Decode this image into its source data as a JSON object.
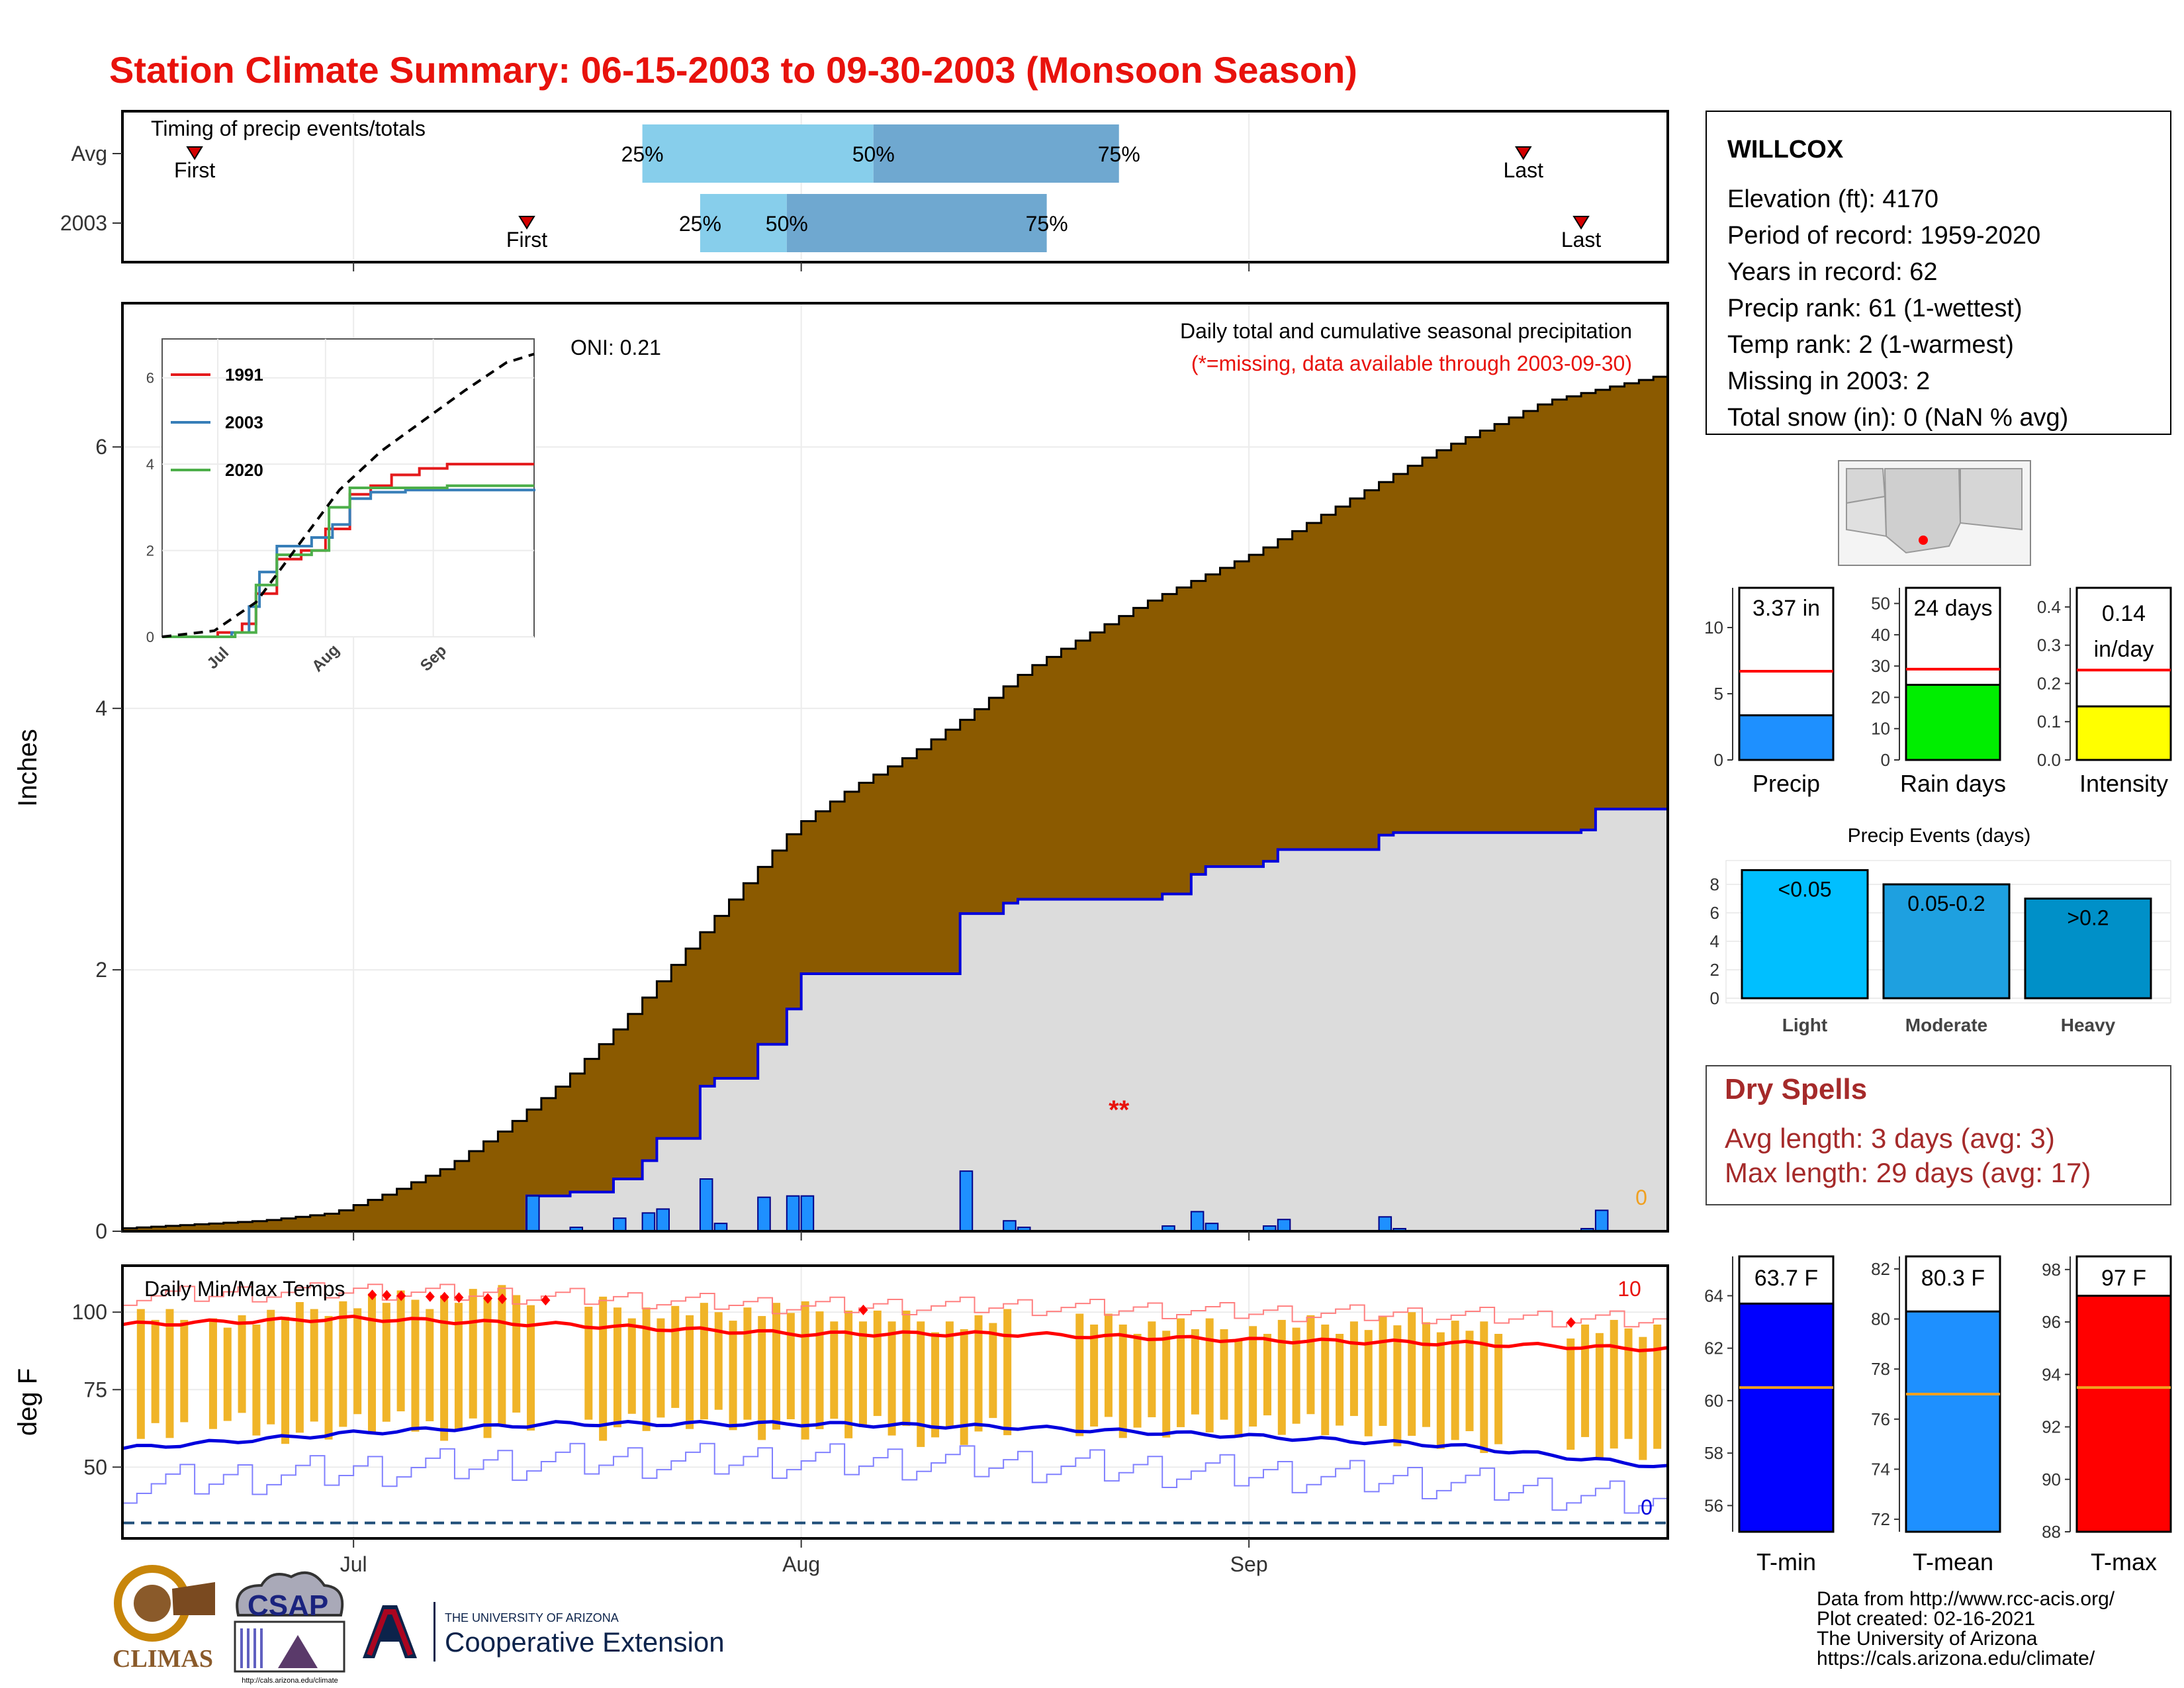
{
  "page": {
    "title": "Station Climate Summary: 06-15-2003 to 09-30-2003 (Monsoon Season)",
    "title_color": "#e8120c"
  },
  "timing_panel": {
    "label": "Timing of precip events/totals",
    "rows": [
      {
        "name": "Avg",
        "first_label": "First",
        "last_label": "Last",
        "first": "2003-06-20",
        "last": "2003-09-20",
        "p25": "2003-07-21",
        "p50": "2003-08-06",
        "p75": "2003-08-23",
        "p25_label": "25%",
        "p50_label": "50%",
        "p75_label": "75%"
      },
      {
        "name": "2003",
        "first_label": "First",
        "last_label": "Last",
        "first": "2003-07-13",
        "last": "2003-09-24",
        "p25": "2003-07-25",
        "p50": "2003-07-31",
        "p75": "2003-08-18",
        "p25_label": "25%",
        "p50_label": "50%",
        "p75_label": "75%"
      }
    ],
    "colors": {
      "light": "#87ceeb",
      "dark": "#6fa8d0",
      "marker": "#d40000"
    }
  },
  "precip_panel": {
    "ylabel": "Inches",
    "title": "Daily total and cumulative seasonal precipitation",
    "note": "(*=missing, data available through 2003-09-30)",
    "oni_label": "ONI: 0.21",
    "missing_marker": "**",
    "missing_date": "2003-08-23",
    "zero_label": "0",
    "ylim": [
      0,
      7.1
    ],
    "yticks": [
      0,
      2,
      4,
      6
    ],
    "colors": {
      "avg_fill": "#8b5a00",
      "obs_fill": "#dcdcdc",
      "obs_line": "#0000dd",
      "bar": "#1e90ff"
    }
  },
  "inset_chart": {
    "yticks": [
      0,
      2,
      4,
      6
    ],
    "xticks": [
      "Jul",
      "Aug",
      "Sep"
    ],
    "legend": [
      {
        "name": "1991",
        "color": "#e41a1c"
      },
      {
        "name": "2003",
        "color": "#377eb8"
      },
      {
        "name": "2020",
        "color": "#4daf4a"
      }
    ]
  },
  "temp_panel": {
    "ylabel": "deg F",
    "title": "Daily Min/Max Temps",
    "count_hi": "10",
    "count_lo": "0",
    "ylim": [
      27,
      115
    ],
    "yticks": [
      50,
      75,
      100
    ],
    "freeze_line": 32,
    "colors": {
      "bar": "#f0b428",
      "max_avg": "#ff0000",
      "min_avg": "#0000dd",
      "max_rec": "#ff8080",
      "min_rec": "#8080ff",
      "record": "#ff0000"
    }
  },
  "x_axis": {
    "start": "2003-06-15",
    "end": "2003-09-30",
    "ticks": [
      "Jul",
      "Aug",
      "Sep"
    ]
  },
  "station": {
    "name": "WILLCOX",
    "lines": [
      "Elevation (ft): 4170",
      "Period of record: 1959-2020",
      "Years in record: 62",
      "Precip rank: 61 (1-wettest)",
      "Temp rank: 2 (1-warmest)",
      "Missing in 2003: 2",
      "Total snow (in): 0 (NaN % avg)"
    ]
  },
  "summary_bars": [
    {
      "label": "Precip",
      "value": 3.37,
      "value_label": "3.37 in",
      "avg": 6.7,
      "ymax": 13,
      "yticks": [
        0,
        5,
        10
      ],
      "tick_decimals": 0,
      "color": "#1e90ff"
    },
    {
      "label": "Rain days",
      "value": 24,
      "value_label": "24 days",
      "avg": 29,
      "ymax": 55,
      "yticks": [
        0,
        10,
        20,
        30,
        40,
        50
      ],
      "tick_decimals": 0,
      "color": "#00ee00"
    },
    {
      "label": "Intensity",
      "value": 0.14,
      "value_label": "0.14 in/day",
      "avg": 0.235,
      "ymax": 0.45,
      "yticks": [
        0.0,
        0.1,
        0.2,
        0.3,
        0.4
      ],
      "tick_decimals": 1,
      "color": "#ffff00"
    }
  ],
  "precip_events": {
    "title": "Precip Events (days)",
    "categories": [
      "Light",
      "Moderate",
      "Heavy"
    ],
    "labels": [
      "<0.05",
      "0.05-0.2",
      ">0.2"
    ],
    "values": [
      9,
      8,
      7
    ],
    "yticks": [
      0,
      2,
      4,
      6,
      8
    ],
    "colors": [
      "#00bfff",
      "#1ea0e0",
      "#0090c8"
    ]
  },
  "dry_spells": {
    "title": "Dry Spells",
    "avg_length": "Avg length: 3 days (avg: 3)",
    "max_length": "Max length: 29 days (avg: 17)",
    "color": "#a52a2a"
  },
  "temp_bars": [
    {
      "label": "T-min",
      "value": 63.7,
      "value_label": "63.7 F",
      "avg": 60.5,
      "ymin": 55,
      "ymax": 65.5,
      "yticks": [
        56,
        58,
        60,
        62,
        64
      ],
      "color": "#0000ff"
    },
    {
      "label": "T-mean",
      "value": 80.3,
      "value_label": "80.3 F",
      "avg": 77,
      "ymin": 71.5,
      "ymax": 82.5,
      "yticks": [
        72,
        74,
        76,
        78,
        80,
        82
      ],
      "color": "#1e90ff"
    },
    {
      "label": "T-max",
      "value": 97,
      "value_label": "97 F",
      "avg": 93.5,
      "ymin": 88,
      "ymax": 98.5,
      "yticks": [
        88,
        90,
        92,
        94,
        96,
        98
      ],
      "color": "#ff0000"
    }
  ],
  "footer": {
    "lines": [
      "Data from http://www.rcc-acis.org/",
      "Plot created: 02-16-2021",
      "The University of Arizona",
      "https://cals.arizona.edu/climate/"
    ],
    "climas_text": "CLIMAS",
    "csap_text": "CSAP",
    "csap_url": "http://cals.arizona.edu/climate",
    "ua_small": "THE UNIVERSITY OF ARIZONA",
    "ua_big": "Cooperative Extension"
  },
  "chart_data": [
    {
      "type": "area",
      "title": "Daily total and cumulative seasonal precipitation",
      "ylabel": "Inches",
      "ylim": [
        0,
        7.1
      ],
      "x_start": "2003-06-15",
      "x_end": "2003-09-30",
      "avg_cumulative_points": [
        [
          "2003-06-15",
          0.02
        ],
        [
          "2003-06-20",
          0.05
        ],
        [
          "2003-06-25",
          0.08
        ],
        [
          "2003-06-30",
          0.14
        ],
        [
          "2003-07-04",
          0.3
        ],
        [
          "2003-07-08",
          0.5
        ],
        [
          "2003-07-12",
          0.8
        ],
        [
          "2003-07-16",
          1.15
        ],
        [
          "2003-07-20",
          1.6
        ],
        [
          "2003-07-24",
          2.1
        ],
        [
          "2003-07-28",
          2.6
        ],
        [
          "2003-08-01",
          3.1
        ],
        [
          "2003-08-05",
          3.4
        ],
        [
          "2003-08-09",
          3.65
        ],
        [
          "2003-08-13",
          3.95
        ],
        [
          "2003-08-17",
          4.3
        ],
        [
          "2003-08-21",
          4.55
        ],
        [
          "2003-08-25",
          4.8
        ],
        [
          "2003-08-29",
          5.0
        ],
        [
          "2003-09-02",
          5.2
        ],
        [
          "2003-09-06",
          5.45
        ],
        [
          "2003-09-10",
          5.7
        ],
        [
          "2003-09-14",
          5.95
        ],
        [
          "2003-09-18",
          6.15
        ],
        [
          "2003-09-22",
          6.35
        ],
        [
          "2003-09-26",
          6.45
        ],
        [
          "2003-09-30",
          6.55
        ]
      ],
      "daily_precip_2003": [
        [
          "2003-07-13",
          0.27
        ],
        [
          "2003-07-16",
          0.03
        ],
        [
          "2003-07-19",
          0.1
        ],
        [
          "2003-07-21",
          0.14
        ],
        [
          "2003-07-22",
          0.17
        ],
        [
          "2003-07-25",
          0.4
        ],
        [
          "2003-07-26",
          0.06
        ],
        [
          "2003-07-29",
          0.26
        ],
        [
          "2003-07-31",
          0.27
        ],
        [
          "2003-08-01",
          0.27
        ],
        [
          "2003-08-12",
          0.46
        ],
        [
          "2003-08-15",
          0.08
        ],
        [
          "2003-08-16",
          0.03
        ],
        [
          "2003-08-26",
          0.04
        ],
        [
          "2003-08-28",
          0.15
        ],
        [
          "2003-08-29",
          0.06
        ],
        [
          "2003-09-02",
          0.04
        ],
        [
          "2003-09-03",
          0.09
        ],
        [
          "2003-09-10",
          0.11
        ],
        [
          "2003-09-11",
          0.02
        ],
        [
          "2003-09-24",
          0.02
        ],
        [
          "2003-09-25",
          0.16
        ]
      ]
    },
    {
      "type": "line",
      "title": "",
      "series": [
        {
          "name": "1991",
          "points": [
            [
              "2003-06-15",
              0
            ],
            [
              "2003-07-01",
              0.1
            ],
            [
              "2003-07-08",
              0.3
            ],
            [
              "2003-07-12",
              1.0
            ],
            [
              "2003-07-18",
              1.8
            ],
            [
              "2003-07-25",
              2.0
            ],
            [
              "2003-08-01",
              2.5
            ],
            [
              "2003-08-08",
              3.3
            ],
            [
              "2003-08-14",
              3.5
            ],
            [
              "2003-08-20",
              3.75
            ],
            [
              "2003-08-28",
              3.9
            ],
            [
              "2003-09-05",
              4.0
            ],
            [
              "2003-09-20",
              4.0
            ],
            [
              "2003-09-30",
              4.0
            ]
          ]
        },
        {
          "name": "2003",
          "points": [
            [
              "2003-06-15",
              0
            ],
            [
              "2003-07-05",
              0.1
            ],
            [
              "2003-07-10",
              0.7
            ],
            [
              "2003-07-13",
              1.5
            ],
            [
              "2003-07-18",
              2.1
            ],
            [
              "2003-07-28",
              2.3
            ],
            [
              "2003-08-03",
              2.6
            ],
            [
              "2003-08-08",
              3.2
            ],
            [
              "2003-08-14",
              3.35
            ],
            [
              "2003-08-24",
              3.4
            ],
            [
              "2003-09-10",
              3.4
            ],
            [
              "2003-09-30",
              3.37
            ]
          ]
        },
        {
          "name": "2020",
          "points": [
            [
              "2003-06-15",
              0
            ],
            [
              "2003-07-06",
              0.1
            ],
            [
              "2003-07-12",
              1.2
            ],
            [
              "2003-07-18",
              1.9
            ],
            [
              "2003-07-28",
              2.0
            ],
            [
              "2003-08-02",
              3.0
            ],
            [
              "2003-08-08",
              3.45
            ],
            [
              "2003-08-20",
              3.45
            ],
            [
              "2003-09-05",
              3.5
            ],
            [
              "2003-09-30",
              3.5
            ]
          ]
        },
        {
          "name": "Average",
          "points": [
            [
              "2003-06-15",
              0
            ],
            [
              "2003-06-30",
              0.14
            ],
            [
              "2003-07-12",
              0.8
            ],
            [
              "2003-07-24",
              2.1
            ],
            [
              "2003-08-05",
              3.4
            ],
            [
              "2003-08-17",
              4.3
            ],
            [
              "2003-08-29",
              5.0
            ],
            [
              "2003-09-10",
              5.7
            ],
            [
              "2003-09-22",
              6.35
            ],
            [
              "2003-09-30",
              6.55
            ]
          ]
        }
      ]
    },
    {
      "type": "bar",
      "title": "Daily Min/Max Temps",
      "ylabel": "deg F",
      "ylim": [
        27,
        115
      ],
      "daily_range": [
        [
          "2003-06-16",
          60,
          100
        ],
        [
          "2003-06-20",
          66,
          98
        ],
        [
          "2003-06-24",
          62,
          98
        ],
        [
          "2003-06-28",
          62,
          101
        ],
        [
          "2003-07-02",
          64,
          104
        ],
        [
          "2003-07-06",
          63,
          104
        ],
        [
          "2003-07-10",
          63,
          106
        ],
        [
          "2003-07-14",
          65,
          105
        ],
        [
          "2003-07-18",
          63,
          102
        ],
        [
          "2003-07-22",
          66,
          100
        ],
        [
          "2003-07-26",
          64,
          100
        ],
        [
          "2003-07-30",
          63,
          101
        ],
        [
          "2003-08-03",
          62,
          100
        ],
        [
          "2003-08-07",
          62,
          98
        ],
        [
          "2003-08-11",
          60,
          96
        ],
        [
          "2003-08-15",
          63,
          98
        ],
        [
          "2003-08-19",
          65,
          98
        ],
        [
          "2003-08-23",
          63,
          96
        ],
        [
          "2003-08-27",
          62,
          96
        ],
        [
          "2003-08-31",
          64,
          94
        ],
        [
          "2003-09-04",
          64,
          96
        ],
        [
          "2003-09-08",
          62,
          96
        ],
        [
          "2003-09-12",
          61,
          97
        ],
        [
          "2003-09-16",
          58,
          96
        ],
        [
          "2003-09-20",
          55,
          92
        ],
        [
          "2003-09-24",
          57,
          94
        ],
        [
          "2003-09-28",
          55,
          95
        ]
      ],
      "avg_max": [
        [
          "2003-06-15",
          96
        ],
        [
          "2003-07-01",
          98
        ],
        [
          "2003-07-15",
          96
        ],
        [
          "2003-08-01",
          93
        ],
        [
          "2003-08-15",
          93
        ],
        [
          "2003-09-01",
          91
        ],
        [
          "2003-09-15",
          90
        ],
        [
          "2003-09-30",
          88
        ]
      ],
      "avg_min": [
        [
          "2003-06-15",
          56
        ],
        [
          "2003-07-01",
          61
        ],
        [
          "2003-07-15",
          64
        ],
        [
          "2003-08-01",
          64
        ],
        [
          "2003-08-15",
          63
        ],
        [
          "2003-09-01",
          60
        ],
        [
          "2003-09-15",
          57
        ],
        [
          "2003-09-30",
          50
        ]
      ]
    }
  ]
}
